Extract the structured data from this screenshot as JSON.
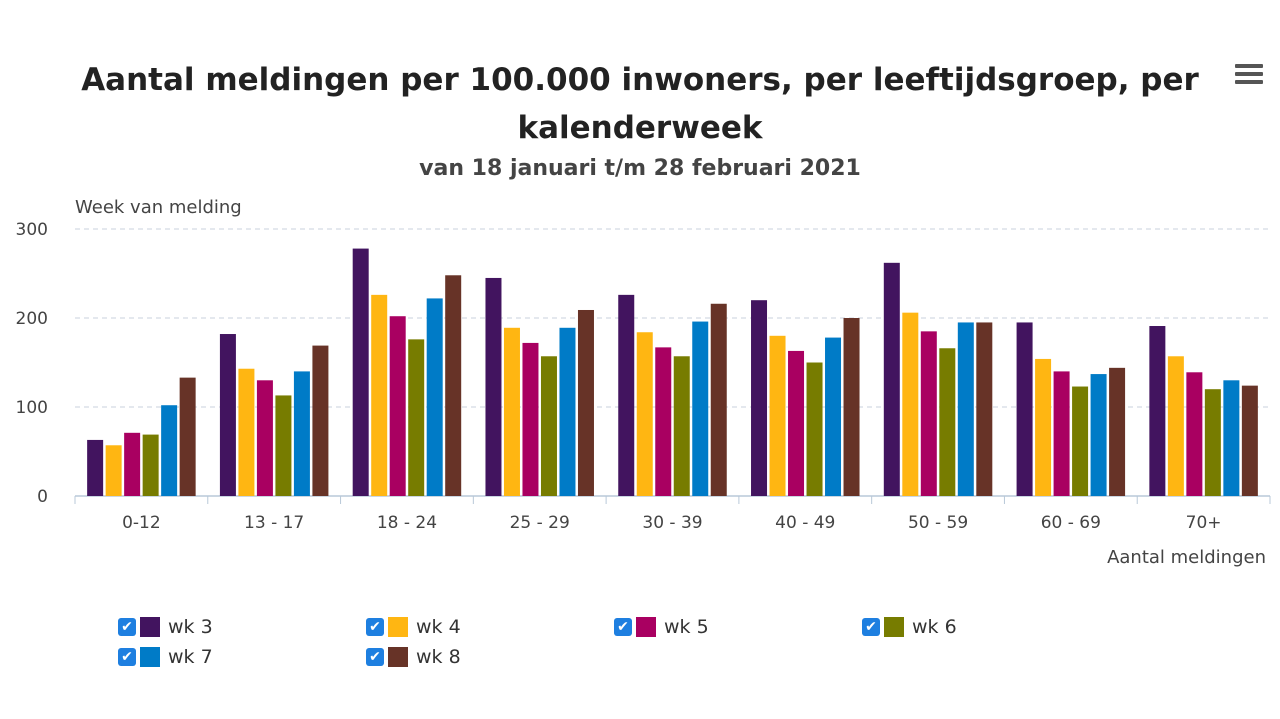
{
  "chart_data": {
    "type": "bar",
    "title": "Aantal meldingen per 100.000 inwoners, per leeftijdsgroep, per kalenderweek",
    "subtitle": "van 18 januari t/m 28 februari 2021",
    "ylabel": "Week van melding",
    "xlabel": "Aantal meldingen",
    "ylim": [
      0,
      300
    ],
    "yticks": [
      "0",
      "100",
      "200",
      "300"
    ],
    "grid": true,
    "legend_position": "bottom",
    "categories": [
      "0-12",
      "13 - 17",
      "18 - 24",
      "25 - 29",
      "30 - 39",
      "40 - 49",
      "50 - 59",
      "60 - 69",
      "70+"
    ],
    "series": [
      {
        "name": "wk 3",
        "color": "#42145f",
        "values": [
          63,
          182,
          278,
          245,
          226,
          220,
          262,
          195,
          191
        ]
      },
      {
        "name": "wk 4",
        "color": "#ffb612",
        "values": [
          57,
          143,
          226,
          189,
          184,
          180,
          206,
          154,
          157
        ]
      },
      {
        "name": "wk 5",
        "color": "#a90061",
        "values": [
          71,
          130,
          202,
          172,
          167,
          163,
          185,
          140,
          139
        ]
      },
      {
        "name": "wk 6",
        "color": "#777c00",
        "values": [
          69,
          113,
          176,
          157,
          157,
          150,
          166,
          123,
          120
        ]
      },
      {
        "name": "wk 7",
        "color": "#007bc7",
        "values": [
          102,
          140,
          222,
          189,
          196,
          178,
          195,
          137,
          130
        ]
      },
      {
        "name": "wk 8",
        "color": "#673327",
        "values": [
          133,
          169,
          248,
          209,
          216,
          200,
          195,
          144,
          124
        ]
      }
    ]
  },
  "menu_icon": "hamburger-menu-icon",
  "legend_checkbox_icon": "checkmark-icon"
}
